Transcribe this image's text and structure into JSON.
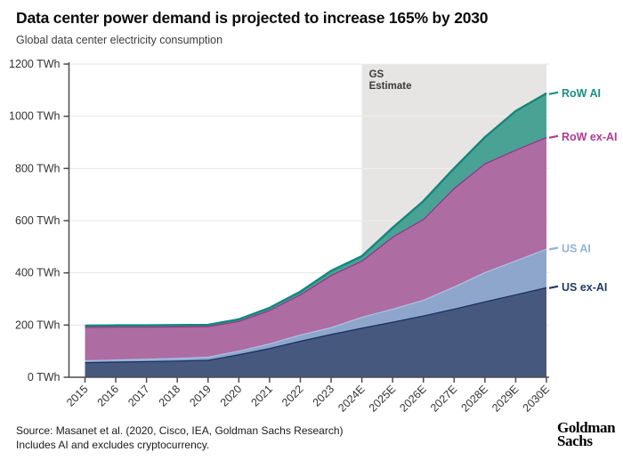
{
  "header": {
    "title": "Data center power demand is projected to increase 165% by 2030",
    "subtitle": "Global data center electricity consumption"
  },
  "chart_data": {
    "type": "area",
    "stacked": true,
    "x": [
      "2015",
      "2016",
      "2017",
      "2018",
      "2019",
      "2020",
      "2021",
      "2022",
      "2023",
      "2024E",
      "2025E",
      "2026E",
      "2027E",
      "2028E",
      "2029E",
      "2030E"
    ],
    "series": [
      {
        "name": "US ex-AI",
        "values": [
          58,
          60,
          62,
          64,
          67,
          88,
          112,
          140,
          166,
          190,
          213,
          237,
          263,
          291,
          318,
          345
        ],
        "fill": "#47587e",
        "line": "#152d61",
        "label_color": "#223a63"
      },
      {
        "name": "US AI",
        "values": [
          7,
          8,
          9,
          10,
          12,
          14,
          18,
          24,
          26,
          42,
          50,
          60,
          85,
          112,
          130,
          148
        ],
        "fill": "#8ea6cb",
        "line": "#a9c4e4",
        "label_color": "#8fb4de"
      },
      {
        "name": "RoW ex-AI",
        "values": [
          128,
          126,
          123,
          121,
          117,
          114,
          128,
          154,
          200,
          215,
          276,
          310,
          378,
          417,
          424,
          428
        ],
        "fill": "#ad6ca2",
        "line": "#9c2d87",
        "label_color": "#b13a92"
      },
      {
        "name": "RoW AI",
        "values": [
          5,
          5,
          5,
          5,
          5,
          6,
          8,
          10,
          16,
          17,
          34,
          68,
          75,
          100,
          148,
          167
        ],
        "fill": "#4aa294",
        "line": "#12877c",
        "label_color": "#1a9084"
      }
    ],
    "units": "TWh",
    "yticks": [
      0,
      200,
      400,
      600,
      800,
      1000,
      1200
    ],
    "ytick_labels": [
      "0 TWh",
      "200 TWh",
      "400 TWh",
      "600 TWh",
      "800 TWh",
      "1000 TWh",
      "1200 TWh"
    ],
    "ylim": [
      0,
      1200
    ],
    "grid": true,
    "legend_position": "right-of-plot",
    "estimate_region": {
      "label_lines": [
        "GS",
        "Estimate"
      ],
      "start_x": "2024E",
      "fill": "#e6e5e3",
      "grid_color_inside": "#f1f0ee",
      "label_color": "#3a3a3a"
    },
    "colors": {
      "axis": "#4c4c4c",
      "grid": "#e4e4e4",
      "tick_label": "#333333"
    }
  },
  "footer": {
    "source": "Source: Masanet et al. (2020, Cisco, IEA, Goldman Sachs Research)",
    "note": "Includes AI and excludes cryptocurrency.",
    "logo_line1": "Goldman",
    "logo_line2": "Sachs"
  }
}
